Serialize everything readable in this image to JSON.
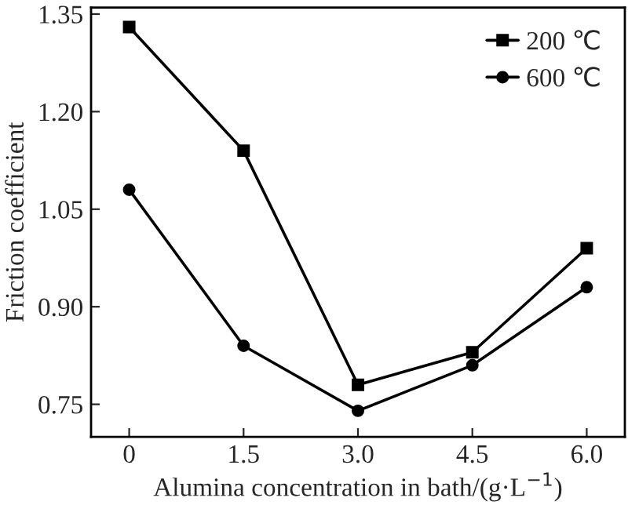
{
  "chart_data": {
    "type": "line",
    "xlabel": "Alumina concentration in bath/(g·L$^{−1}$)",
    "ylabel": "Friction coefficient",
    "x": [
      0,
      1.5,
      3.0,
      4.5,
      6.0
    ],
    "series": [
      {
        "name": "200 ℃",
        "color": "#000000",
        "marker": "square",
        "values": [
          1.33,
          1.14,
          0.78,
          0.83,
          0.99
        ]
      },
      {
        "name": "600 ℃",
        "color": "#000000",
        "marker": "circle",
        "values": [
          1.08,
          0.84,
          0.74,
          0.81,
          0.93
        ]
      }
    ],
    "xlim": [
      -0.5,
      6.5
    ],
    "xticks": [
      0,
      {
        "value": 1.5,
        "label": "1.5"
      },
      {
        "value": 3,
        "label": "3.0"
      },
      {
        "value": 4.5,
        "label": "4.5"
      },
      {
        "value": 6,
        "label": "6.0"
      }
    ],
    "ylim": [
      0.7,
      1.36
    ],
    "yticks": [
      {
        "value": 0.75,
        "label": "0.75"
      },
      {
        "value": 0.9,
        "label": "0.90"
      },
      {
        "value": 1.05,
        "label": "1.05"
      },
      {
        "value": 1.2,
        "label": "1.20"
      },
      {
        "value": 1.35,
        "label": "1.35"
      }
    ],
    "legend": "top right",
    "grid": false,
    "line_style": "solid"
  }
}
